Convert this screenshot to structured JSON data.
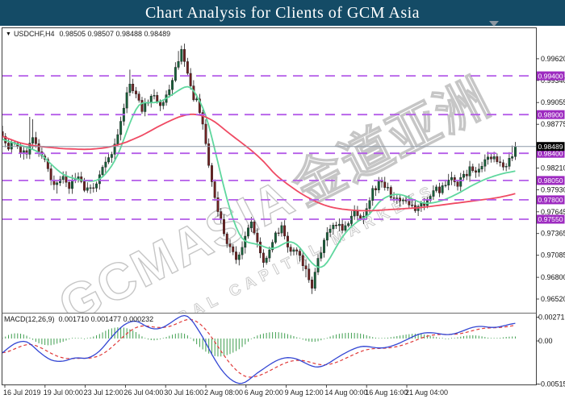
{
  "title_bar": {
    "text": "Chart Analysis for Clients of GCM Asia",
    "bg_color": "#144b66",
    "text_color": "#ffffff"
  },
  "chart_header": {
    "dropdown_glyph": "▼",
    "symbol": "USDCHF,H4",
    "ohlc": "0.98505 0.98507 0.98488 0.98489"
  },
  "watermark": {
    "brand": "GCMASIA",
    "brand_cjk": "金道亚洲",
    "tagline": "GLOBAL CAPITAL MARKETS"
  },
  "scroll_marker_color": "#8b97a1",
  "chart_data": {
    "type": "candlestick",
    "symbol": "USDCHF",
    "timeframe": "H4",
    "title": "USDCHF H4 candlestick chart with MACD(12,26,9)",
    "colors": {
      "up_candle": "#17603a",
      "down_candle": "#6e2121",
      "wick": "#1a1a1a",
      "fast_ma": "#5fd79e",
      "slow_ma": "#ef4a63",
      "level_line": "#b45ce8",
      "level_badge": "#9d2bc0",
      "price_line": "#8c98a8",
      "price_badge": "#000000",
      "macd_line": "#3346d3",
      "macd_signal": "#e03838",
      "macd_hist": "#3f9e4f"
    },
    "y_axis": {
      "ticks": [
        {
          "price": 0.9962,
          "label": "0.99620"
        },
        {
          "price": 0.9934,
          "label": "0.99340"
        },
        {
          "price": 0.99055,
          "label": "0.99055"
        },
        {
          "price": 0.98775,
          "label": "0.98775"
        },
        {
          "price": 0.9821,
          "label": "0.98210"
        },
        {
          "price": 0.9793,
          "label": "0.97930"
        },
        {
          "price": 0.97645,
          "label": "0.97645"
        },
        {
          "price": 0.97365,
          "label": "0.97365"
        },
        {
          "price": 0.97085,
          "label": "0.97085"
        },
        {
          "price": 0.968,
          "label": "0.96800"
        },
        {
          "price": 0.9652,
          "label": "0.96520"
        }
      ]
    },
    "levels": [
      {
        "price": 0.994,
        "label": "0.99400"
      },
      {
        "price": 0.989,
        "label": "0.98900"
      },
      {
        "price": 0.984,
        "label": "0.98400"
      },
      {
        "price": 0.9805,
        "label": "0.98050"
      },
      {
        "price": 0.978,
        "label": "0.97800"
      },
      {
        "price": 0.9755,
        "label": "0.97550"
      }
    ],
    "current_price": {
      "value": 0.98489,
      "label": "0.98489"
    },
    "x_axis": {
      "labels": [
        "16 Jul 2019",
        "19 Jul 00:00",
        "23 Jul 12:00",
        "26 Jul 04:00",
        "30 Jul 16:00",
        "2 Aug 08:00",
        "6 Aug 20:00",
        "9 Aug 12:00",
        "14 Aug 00:00",
        "16 Aug 16:00",
        "21 Aug 04:00"
      ]
    },
    "candles": {
      "count": 170,
      "close_anchors": [
        [
          0,
          0.9862
        ],
        [
          2,
          0.985
        ],
        [
          4,
          0.9856
        ],
        [
          6,
          0.9845
        ],
        [
          8,
          0.9843
        ],
        [
          10,
          0.9855
        ],
        [
          12,
          0.9842
        ],
        [
          14,
          0.9828
        ],
        [
          16,
          0.981
        ],
        [
          18,
          0.9797
        ],
        [
          20,
          0.9806
        ],
        [
          22,
          0.9798
        ],
        [
          24,
          0.981
        ],
        [
          26,
          0.98
        ],
        [
          28,
          0.9792
        ],
        [
          30,
          0.98
        ],
        [
          32,
          0.9812
        ],
        [
          34,
          0.9825
        ],
        [
          36,
          0.984
        ],
        [
          38,
          0.9862
        ],
        [
          40,
          0.9896
        ],
        [
          42,
          0.993
        ],
        [
          44,
          0.992
        ],
        [
          46,
          0.9898
        ],
        [
          48,
          0.9905
        ],
        [
          50,
          0.9916
        ],
        [
          52,
          0.9904
        ],
        [
          54,
          0.9918
        ],
        [
          56,
          0.993
        ],
        [
          58,
          0.9962
        ],
        [
          59,
          0.997
        ],
        [
          61,
          0.9945
        ],
        [
          63,
          0.9913
        ],
        [
          65,
          0.9897
        ],
        [
          67,
          0.9849
        ],
        [
          69,
          0.9801
        ],
        [
          71,
          0.9769
        ],
        [
          74,
          0.9726
        ],
        [
          77,
          0.9703
        ],
        [
          80,
          0.9731
        ],
        [
          82,
          0.9748
        ],
        [
          84,
          0.9722
        ],
        [
          86,
          0.9703
        ],
        [
          88,
          0.9715
        ],
        [
          90,
          0.9732
        ],
        [
          92,
          0.9744
        ],
        [
          94,
          0.9724
        ],
        [
          96,
          0.9712
        ],
        [
          98,
          0.9705
        ],
        [
          100,
          0.9692
        ],
        [
          102,
          0.9666
        ],
        [
          104,
          0.97
        ],
        [
          106,
          0.973
        ],
        [
          108,
          0.9745
        ],
        [
          110,
          0.9752
        ],
        [
          112,
          0.9742
        ],
        [
          114,
          0.9752
        ],
        [
          116,
          0.9764
        ],
        [
          118,
          0.9754
        ],
        [
          120,
          0.977
        ],
        [
          122,
          0.979
        ],
        [
          124,
          0.9801
        ],
        [
          126,
          0.9795
        ],
        [
          128,
          0.9788
        ],
        [
          130,
          0.9782
        ],
        [
          132,
          0.9775
        ],
        [
          134,
          0.9771
        ],
        [
          136,
          0.9768
        ],
        [
          138,
          0.9774
        ],
        [
          140,
          0.9781
        ],
        [
          142,
          0.9789
        ],
        [
          144,
          0.9794
        ],
        [
          146,
          0.9801
        ],
        [
          148,
          0.9807
        ],
        [
          150,
          0.98
        ],
        [
          152,
          0.9813
        ],
        [
          154,
          0.9819
        ],
        [
          156,
          0.9811
        ],
        [
          158,
          0.9823
        ],
        [
          160,
          0.983
        ],
        [
          163,
          0.9834
        ],
        [
          165,
          0.9821
        ],
        [
          167,
          0.9831
        ],
        [
          168,
          0.9841
        ],
        [
          169,
          0.98489
        ]
      ],
      "wick_overrides": [
        {
          "i": 9,
          "high": 0.9887
        },
        {
          "i": 10,
          "high": 0.9884
        },
        {
          "i": 18,
          "low": 0.9788
        },
        {
          "i": 28,
          "low": 0.9789
        },
        {
          "i": 42,
          "high": 0.9948
        },
        {
          "i": 58,
          "high": 0.9972
        },
        {
          "i": 59,
          "high": 0.9979
        },
        {
          "i": 60,
          "high": 0.9974
        },
        {
          "i": 100,
          "low": 0.968
        },
        {
          "i": 102,
          "low": 0.9659
        },
        {
          "i": 124,
          "high": 0.9806
        },
        {
          "i": 136,
          "low": 0.9764
        },
        {
          "i": 168,
          "high": 0.985
        },
        {
          "i": 169,
          "high": 0.9853
        }
      ]
    },
    "fast_ma": {
      "name": "fast moving average",
      "anchors": [
        [
          0,
          0.9858
        ],
        [
          4,
          0.9853
        ],
        [
          8,
          0.9848
        ],
        [
          12,
          0.9842
        ],
        [
          16,
          0.9826
        ],
        [
          20,
          0.9812
        ],
        [
          24,
          0.9807
        ],
        [
          28,
          0.9804
        ],
        [
          31,
          0.9804
        ],
        [
          34,
          0.9812
        ],
        [
          38,
          0.9836
        ],
        [
          42,
          0.988
        ],
        [
          45,
          0.9906
        ],
        [
          48,
          0.9905
        ],
        [
          52,
          0.9906
        ],
        [
          56,
          0.9916
        ],
        [
          60,
          0.9926
        ],
        [
          62,
          0.9928
        ],
        [
          64,
          0.9915
        ],
        [
          67,
          0.9892
        ],
        [
          70,
          0.9845
        ],
        [
          73,
          0.9795
        ],
        [
          76,
          0.9753
        ],
        [
          79,
          0.9727
        ],
        [
          82,
          0.9724
        ],
        [
          85,
          0.9722
        ],
        [
          88,
          0.9716
        ],
        [
          91,
          0.9719
        ],
        [
          94,
          0.9727
        ],
        [
          97,
          0.9724
        ],
        [
          100,
          0.9708
        ],
        [
          103,
          0.9693
        ],
        [
          106,
          0.9692
        ],
        [
          109,
          0.9712
        ],
        [
          112,
          0.9733
        ],
        [
          115,
          0.9746
        ],
        [
          118,
          0.9755
        ],
        [
          121,
          0.976
        ],
        [
          124,
          0.9778
        ],
        [
          127,
          0.9785
        ],
        [
          130,
          0.9788
        ],
        [
          133,
          0.9785
        ],
        [
          136,
          0.9779
        ],
        [
          139,
          0.9775
        ],
        [
          142,
          0.9776
        ],
        [
          145,
          0.9779
        ],
        [
          148,
          0.9784
        ],
        [
          151,
          0.979
        ],
        [
          154,
          0.9797
        ],
        [
          157,
          0.9803
        ],
        [
          160,
          0.9808
        ],
        [
          163,
          0.9812
        ],
        [
          166,
          0.9815
        ],
        [
          169,
          0.9817
        ]
      ]
    },
    "slow_ma": {
      "name": "slow moving average",
      "anchors": [
        [
          0,
          0.9862
        ],
        [
          6,
          0.9853
        ],
        [
          12,
          0.9849
        ],
        [
          20,
          0.9846
        ],
        [
          28,
          0.9845
        ],
        [
          34,
          0.9847
        ],
        [
          40,
          0.9853
        ],
        [
          46,
          0.9863
        ],
        [
          52,
          0.9876
        ],
        [
          58,
          0.9887
        ],
        [
          62,
          0.9891
        ],
        [
          66,
          0.9889
        ],
        [
          70,
          0.9881
        ],
        [
          74,
          0.9868
        ],
        [
          78,
          0.9856
        ],
        [
          82,
          0.9844
        ],
        [
          86,
          0.983
        ],
        [
          90,
          0.9812
        ],
        [
          94,
          0.98
        ],
        [
          98,
          0.9789
        ],
        [
          102,
          0.978
        ],
        [
          106,
          0.9773
        ],
        [
          110,
          0.9769
        ],
        [
          114,
          0.9767
        ],
        [
          118,
          0.9766
        ],
        [
          122,
          0.9766
        ],
        [
          126,
          0.9767
        ],
        [
          130,
          0.9768
        ],
        [
          134,
          0.9769
        ],
        [
          138,
          0.977
        ],
        [
          142,
          0.9772
        ],
        [
          146,
          0.9774
        ],
        [
          150,
          0.9776
        ],
        [
          154,
          0.9778
        ],
        [
          158,
          0.978
        ],
        [
          162,
          0.9782
        ],
        [
          166,
          0.9785
        ],
        [
          169,
          0.9788
        ]
      ]
    },
    "macd": {
      "label": "MACD(12,26,9)",
      "values_text": "0.001710 0.001477 0.000232",
      "params": [
        12,
        26,
        9
      ],
      "axis_labels": [
        {
          "pos": "top",
          "label": "0.002713"
        },
        {
          "pos": "zero",
          "label": "0.00"
        },
        {
          "pos": "bottom",
          "label": "-0.005156"
        }
      ],
      "anchors": [
        [
          0,
          -0.0016
        ],
        [
          4,
          -0.0005
        ],
        [
          8,
          -0.0002
        ],
        [
          12,
          -0.0015
        ],
        [
          16,
          -0.0025
        ],
        [
          20,
          -0.0026
        ],
        [
          24,
          -0.0021
        ],
        [
          28,
          -0.0023
        ],
        [
          32,
          -0.0015
        ],
        [
          36,
          0.0002
        ],
        [
          40,
          0.0016
        ],
        [
          44,
          0.0021
        ],
        [
          47,
          0.0014
        ],
        [
          50,
          0.001
        ],
        [
          53,
          0.0012
        ],
        [
          56,
          0.0019
        ],
        [
          59,
          0.0026
        ],
        [
          61,
          0.0027
        ],
        [
          63,
          0.0018
        ],
        [
          66,
          0.0002
        ],
        [
          69,
          -0.0018
        ],
        [
          72,
          -0.0035
        ],
        [
          75,
          -0.0046
        ],
        [
          78,
          -0.00515
        ],
        [
          80,
          -0.005
        ],
        [
          83,
          -0.0041
        ],
        [
          86,
          -0.0034
        ],
        [
          89,
          -0.0027
        ],
        [
          92,
          -0.0022
        ],
        [
          95,
          -0.0021
        ],
        [
          98,
          -0.0024
        ],
        [
          101,
          -0.003
        ],
        [
          104,
          -0.0033
        ],
        [
          107,
          -0.0029
        ],
        [
          110,
          -0.0022
        ],
        [
          113,
          -0.0016
        ],
        [
          116,
          -0.0011
        ],
        [
          119,
          -0.0008
        ],
        [
          122,
          -0.001
        ],
        [
          125,
          -0.0011
        ],
        [
          128,
          -0.0009
        ],
        [
          131,
          -0.0005
        ],
        [
          134,
          0.0
        ],
        [
          137,
          0.0005
        ],
        [
          140,
          0.0007
        ],
        [
          143,
          0.0006
        ],
        [
          146,
          0.0004
        ],
        [
          149,
          0.0005
        ],
        [
          152,
          0.0009
        ],
        [
          155,
          0.0013
        ],
        [
          158,
          0.0014
        ],
        [
          161,
          0.0012
        ],
        [
          164,
          0.0013
        ],
        [
          167,
          0.0016
        ],
        [
          169,
          0.00171
        ]
      ]
    }
  }
}
